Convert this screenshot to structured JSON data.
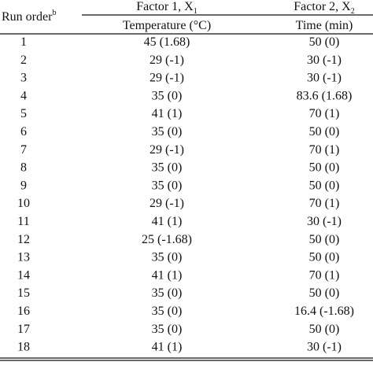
{
  "header": {
    "run_order": {
      "text": "Run order",
      "sup": "b"
    },
    "factor1": {
      "text": "Factor 1, X",
      "sub": "1"
    },
    "factor2": {
      "text": "Factor 2, X",
      "sub": "2"
    },
    "temperature": "Temperature (°C)",
    "time": "Time (min)"
  },
  "table": {
    "rows": [
      [
        "1",
        "45 (1.68)",
        "50 (0)"
      ],
      [
        "2",
        "29 (-1)",
        "30 (-1)"
      ],
      [
        "3",
        "29 (-1)",
        "30 (-1)"
      ],
      [
        "4",
        "35 (0)",
        "83.6 (1.68)"
      ],
      [
        "5",
        "41 (1)",
        "70 (1)"
      ],
      [
        "6",
        "35 (0)",
        "50 (0)"
      ],
      [
        "7",
        "29 (-1)",
        "70 (1)"
      ],
      [
        "8",
        "35 (0)",
        "50 (0)"
      ],
      [
        "9",
        "35 (0)",
        "50 (0)"
      ],
      [
        "10",
        "29 (-1)",
        "70 (1)"
      ],
      [
        "11",
        "41 (1)",
        "30 (-1)"
      ],
      [
        "12",
        "25 (-1.68)",
        "50 (0)"
      ],
      [
        "13",
        "35 (0)",
        "50 (0)"
      ],
      [
        "14",
        "41 (1)",
        "70 (1)"
      ],
      [
        "15",
        "35 (0)",
        "50 (0)"
      ],
      [
        "16",
        "35 (0)",
        "16.4 (-1.68)"
      ],
      [
        "17",
        "35 (0)",
        "50 (0)"
      ],
      [
        "18",
        "41 (1)",
        "30 (-1)"
      ]
    ]
  }
}
